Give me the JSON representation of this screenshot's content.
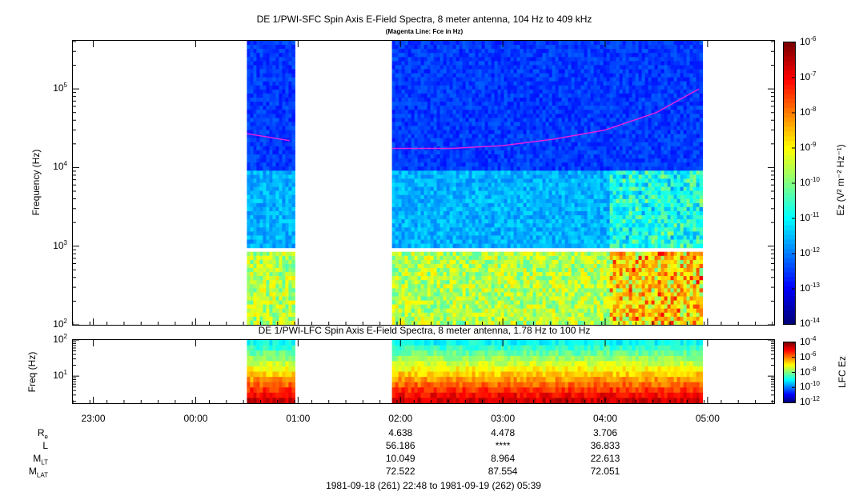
{
  "top_panel": {
    "title": "DE 1/PWI-SFC  Spin Axis E-Field Spectra, 8 meter antenna, 104 Hz to 409 kHz",
    "subtitle": "(Magenta Line: Fce in Hz)",
    "ylabel": "Frequency (Hz)",
    "yticks": [
      {
        "base": "10",
        "exp": "5"
      },
      {
        "base": "10",
        "exp": "4"
      },
      {
        "base": "10",
        "exp": "3"
      },
      {
        "base": "10",
        "exp": "2"
      }
    ],
    "colorbar_label": "Ez (V² m⁻² Hz⁻¹)",
    "colorbar_ticks": [
      {
        "base": "10",
        "exp": "-6"
      },
      {
        "base": "10",
        "exp": "-7"
      },
      {
        "base": "10",
        "exp": "-8"
      },
      {
        "base": "10",
        "exp": "-9"
      },
      {
        "base": "10",
        "exp": "-10"
      },
      {
        "base": "10",
        "exp": "-11"
      },
      {
        "base": "10",
        "exp": "-12"
      },
      {
        "base": "10",
        "exp": "-13"
      },
      {
        "base": "10",
        "exp": "-14"
      }
    ]
  },
  "bottom_panel": {
    "title": "DE 1/PWI-LFC  Spin Axis E-Field Spectra, 8 meter antenna, 1.78 Hz to 100 Hz",
    "ylabel": "Freq (Hz)",
    "yticks": [
      {
        "base": "10",
        "exp": "2"
      },
      {
        "base": "10",
        "exp": "1"
      }
    ],
    "colorbar_label": "LFC Ez",
    "colorbar_ticks": [
      {
        "base": "10",
        "exp": "-4"
      },
      {
        "base": "10",
        "exp": "-6"
      },
      {
        "base": "10",
        "exp": "-8"
      },
      {
        "base": "10",
        "exp": "-10"
      },
      {
        "base": "10",
        "exp": "-12"
      }
    ]
  },
  "xaxis": {
    "ticks": [
      "23:00",
      "00:00",
      "01:00",
      "02:00",
      "03:00",
      "04:00",
      "05:00"
    ]
  },
  "ephemeris": {
    "rows": [
      {
        "name": "R",
        "sub": "e",
        "values": [
          "4.638",
          "4.478",
          "3.706"
        ]
      },
      {
        "name": "L",
        "sub": "",
        "values": [
          "56.186",
          "****",
          "36.833"
        ]
      },
      {
        "name": "M",
        "sub": "LT",
        "values": [
          "10.049",
          "8.964",
          "22.613"
        ]
      },
      {
        "name": "M",
        "sub": "LAT",
        "values": [
          "72.522",
          "87.554",
          "72.051"
        ]
      }
    ]
  },
  "date_range": "1981-09-18 (261) 22:48 to 1981-09-19 (262) 05:39",
  "chart_data": [
    {
      "type": "heatmap",
      "title": "DE 1/PWI-SFC  Spin Axis E-Field Spectra, 8 meter antenna, 104 Hz to 409 kHz",
      "subtitle": "(Magenta Line: Fce in Hz)",
      "ylabel": "Frequency (Hz)",
      "yscale": "log",
      "ylim": [
        100,
        409000
      ],
      "xlim": [
        "1981-09-18 22:48",
        "1981-09-19 05:39"
      ],
      "colorbar": {
        "label": "Ez (V² m⁻² Hz⁻¹)",
        "scale": "log",
        "range": [
          1e-14,
          1e-06
        ]
      },
      "data_intervals": [
        [
          "00:30",
          "00:57"
        ],
        [
          "01:55",
          "04:57"
        ]
      ],
      "fce_line_color": "#e020e0",
      "fce_line": [
        {
          "t": "00:30",
          "f": 27000
        },
        {
          "t": "00:55",
          "f": 22000
        },
        {
          "t": "01:55",
          "f": 17500
        },
        {
          "t": "02:30",
          "f": 17500
        },
        {
          "t": "03:00",
          "f": 19000
        },
        {
          "t": "03:30",
          "f": 23000
        },
        {
          "t": "04:00",
          "f": 30000
        },
        {
          "t": "04:30",
          "f": 50000
        },
        {
          "t": "04:55",
          "f": 100000
        }
      ]
    },
    {
      "type": "heatmap",
      "title": "DE 1/PWI-LFC  Spin Axis E-Field Spectra, 8 meter antenna, 1.78 Hz to 100 Hz",
      "ylabel": "Freq (Hz)",
      "yscale": "log",
      "ylim": [
        1.78,
        100
      ],
      "colorbar": {
        "label": "LFC Ez",
        "scale": "log",
        "range": [
          1e-12,
          0.0001
        ]
      },
      "data_intervals": [
        [
          "00:30",
          "00:57"
        ],
        [
          "01:55",
          "04:57"
        ]
      ]
    }
  ]
}
